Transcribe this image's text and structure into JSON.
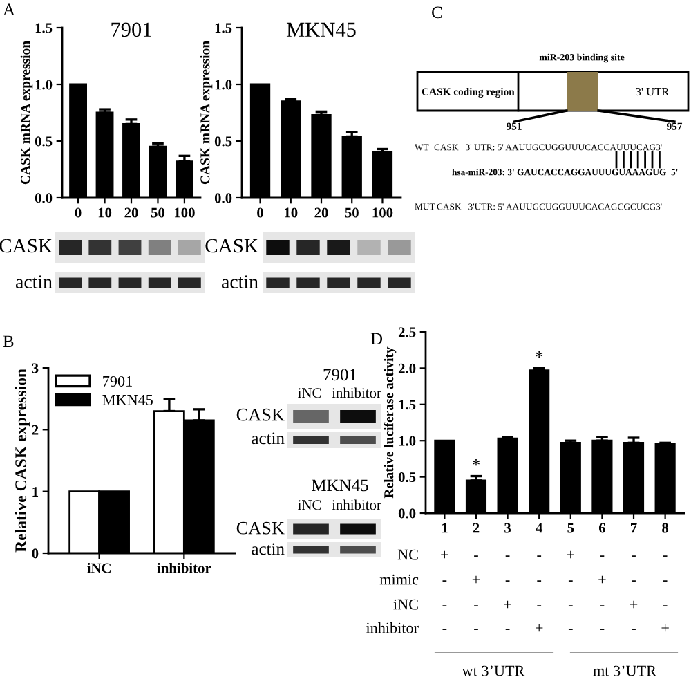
{
  "chart_data": [
    {
      "type": "bar",
      "title": "7901",
      "ylabel": "CASK mRNA expression",
      "categories": [
        "0",
        "10",
        "20",
        "50",
        "100"
      ],
      "values": [
        1.0,
        0.75,
        0.65,
        0.45,
        0.32
      ],
      "color": "#000000",
      "errors": [
        null,
        [
          0.75,
          0.78
        ],
        [
          0.65,
          0.69
        ],
        [
          0.45,
          0.48
        ],
        [
          0.32,
          0.37
        ]
      ],
      "ylim": [
        0,
        1.5
      ],
      "yticks": [
        {
          "value": 0,
          "label": "0.0"
        },
        {
          "value": 0.5,
          "label": "0.5"
        },
        {
          "value": 1.0,
          "label": "1.0"
        },
        {
          "value": 1.5,
          "label": "1.5"
        }
      ],
      "annotations": [
        "A",
        "CASK",
        "actin"
      ]
    },
    {
      "type": "bar",
      "title": "MKN45",
      "ylabel": "CASK mRNA expression",
      "categories": [
        "0",
        "10",
        "20",
        "50",
        "100"
      ],
      "values": [
        1.0,
        0.85,
        0.73,
        0.54,
        0.4
      ],
      "color": "#000000",
      "errors": [
        null,
        [
          0.85,
          0.87
        ],
        [
          0.73,
          0.76
        ],
        [
          0.54,
          0.58
        ],
        [
          0.4,
          0.43
        ]
      ],
      "ylim": [
        0,
        1.5
      ],
      "yticks": [
        {
          "value": 0,
          "label": "0.0"
        },
        {
          "value": 0.5,
          "label": "0.5"
        },
        {
          "value": 1.0,
          "label": "1.0"
        },
        {
          "value": 1.5,
          "label": "1.5"
        }
      ],
      "annotations": [
        "CASK",
        "actin"
      ]
    },
    {
      "type": "other",
      "annotations": [
        "C",
        "miR-203 binding site",
        "CASK coding region",
        "3' UTR",
        "951",
        "957",
        "WT",
        "CASK   3' UTR: 5' AAUUGCUGGUUUCACCAUUUCAG3'",
        "hsa-miR-203: 3' GAUCACCAGGAUUUGUAAAGUG  5'",
        "MUT",
        "CASK   3'UTR: 5' AAUUGCUGGUUUCACAGCGCUCG3'"
      ]
    },
    {
      "type": "bar",
      "ylabel": "Relative CASK expression",
      "categories": [
        "iNC",
        "inhibitor"
      ],
      "series": [
        {
          "name": "7901",
          "color": "#ffffff",
          "values": [
            1.0,
            2.3
          ],
          "errors": [
            null,
            [
              2.3,
              2.5
            ]
          ]
        },
        {
          "name": "MKN45",
          "color": "#000000",
          "values": [
            1.0,
            2.15
          ],
          "errors": [
            null,
            [
              2.15,
              2.33
            ]
          ]
        }
      ],
      "ylim": [
        0,
        3
      ],
      "yticks": [
        0,
        1,
        2,
        3
      ],
      "legend": "top left",
      "annotations": [
        "B",
        "7901",
        "iNC",
        "inhibitor",
        "CASK",
        "actin",
        "MKN45",
        "iNC",
        "inhibitor",
        "CASK",
        "actin"
      ]
    },
    {
      "type": "bar",
      "ylabel": "Relative luciferase activity",
      "categories": [
        "1",
        "2",
        "3",
        "4",
        "5",
        "6",
        "7",
        "8"
      ],
      "values": [
        1.0,
        0.45,
        1.03,
        1.97,
        0.97,
        1.0,
        0.97,
        0.95
      ],
      "color": "#000000",
      "errors": [
        null,
        [
          0.45,
          0.51
        ],
        [
          1.03,
          1.05
        ],
        [
          1.97,
          2.0
        ],
        [
          0.97,
          1.0
        ],
        [
          1.0,
          1.05
        ],
        [
          0.97,
          1.04
        ],
        [
          0.95,
          0.97
        ]
      ],
      "ylim": [
        0,
        2.5
      ],
      "yticks": [
        {
          "value": 0,
          "label": "0.0"
        },
        {
          "value": 0.5,
          "label": "0.5"
        },
        {
          "value": 1.0,
          "label": "1.0"
        },
        {
          "value": 1.5,
          "label": "1.5"
        },
        {
          "value": 2.0,
          "label": "2.0"
        },
        {
          "value": 2.5,
          "label": "2.5"
        }
      ],
      "annotations": [
        "D",
        {
          "text": "*",
          "x": "2",
          "y": 0.51
        },
        {
          "text": "*",
          "x": "4",
          "y": 2.0
        },
        "NC",
        "+",
        "-",
        "-",
        "-",
        "+",
        "-",
        "-",
        "-",
        "mimic",
        "-",
        "+",
        "-",
        "-",
        "-",
        "+",
        "-",
        "-",
        "iNC",
        "-",
        "-",
        "+",
        "-",
        "-",
        "-",
        "+",
        "-",
        "inhibitor",
        "-",
        "-",
        "-",
        "+",
        "-",
        "-",
        "-",
        "+",
        "wt 3’UTR",
        "mt 3’UTR"
      ]
    }
  ]
}
